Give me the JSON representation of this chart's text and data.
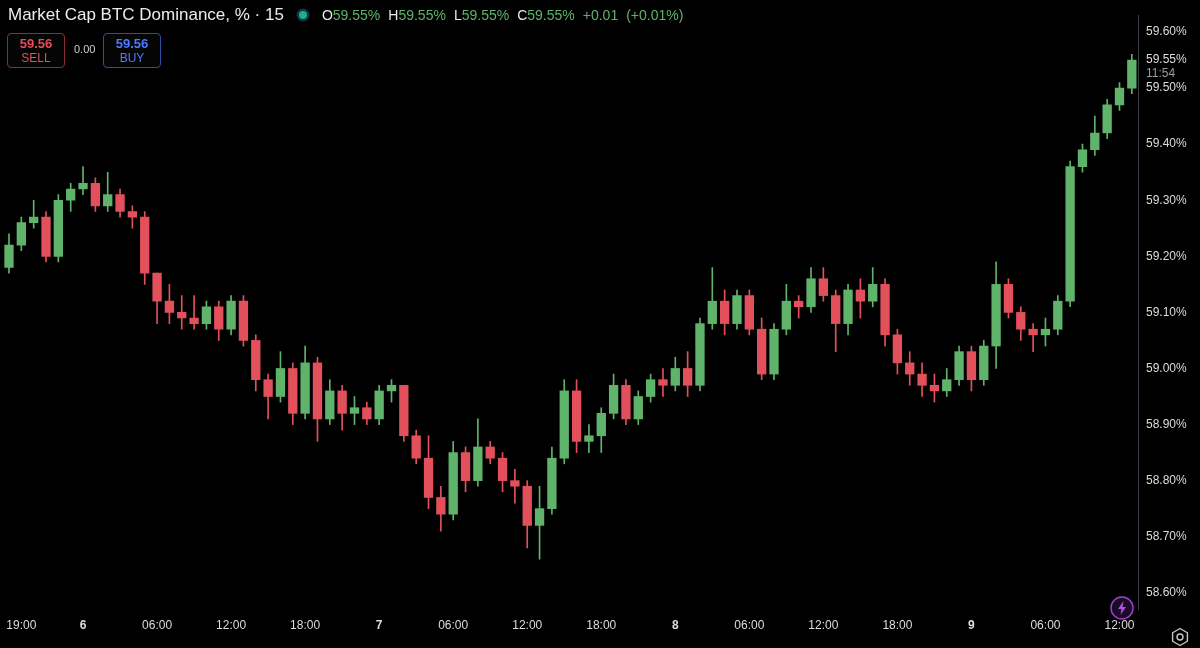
{
  "chart_data": {
    "type": "candlestick",
    "title": "Market Cap BTC Dominance, % · 15",
    "subtitle": "O59.55% H59.55% L59.55% C59.55% +0.01 (+0.01%)",
    "categories": [
      null,
      "19:00",
      null,
      null,
      null,
      null,
      "6",
      null,
      null,
      null,
      null,
      null,
      "06:00",
      null,
      null,
      null,
      null,
      null,
      "12:00",
      null,
      null,
      null,
      null,
      null,
      "18:00",
      null,
      null,
      null,
      null,
      null,
      "7",
      null,
      null,
      null,
      null,
      null,
      "06:00",
      null,
      null,
      null,
      null,
      null,
      "12:00",
      null,
      null,
      null,
      null,
      null,
      "18:00",
      null,
      null,
      null,
      null,
      null,
      "8",
      null,
      null,
      null,
      null,
      null,
      "06:00",
      null,
      null,
      null,
      null,
      null,
      "12:00",
      null,
      null,
      null,
      null,
      null,
      "18:00",
      null,
      null,
      null,
      null,
      null,
      "9",
      null,
      null,
      null,
      null,
      null,
      "06:00",
      null,
      null,
      null,
      null,
      null,
      "12:00",
      null
    ],
    "ohlc": [
      [
        59.18,
        59.24,
        59.17,
        59.22
      ],
      [
        59.22,
        59.27,
        59.21,
        59.26
      ],
      [
        59.26,
        59.3,
        59.25,
        59.27
      ],
      [
        59.27,
        59.28,
        59.19,
        59.2
      ],
      [
        59.2,
        59.31,
        59.19,
        59.3
      ],
      [
        59.3,
        59.33,
        59.28,
        59.32
      ],
      [
        59.32,
        59.36,
        59.31,
        59.33
      ],
      [
        59.33,
        59.34,
        59.28,
        59.29
      ],
      [
        59.29,
        59.35,
        59.28,
        59.31
      ],
      [
        59.31,
        59.32,
        59.27,
        59.28
      ],
      [
        59.28,
        59.29,
        59.25,
        59.27
      ],
      [
        59.27,
        59.28,
        59.15,
        59.17
      ],
      [
        59.17,
        59.17,
        59.08,
        59.12
      ],
      [
        59.12,
        59.15,
        59.08,
        59.1
      ],
      [
        59.1,
        59.13,
        59.07,
        59.09
      ],
      [
        59.09,
        59.13,
        59.07,
        59.08
      ],
      [
        59.08,
        59.12,
        59.07,
        59.11
      ],
      [
        59.11,
        59.12,
        59.05,
        59.07
      ],
      [
        59.07,
        59.13,
        59.06,
        59.12
      ],
      [
        59.12,
        59.13,
        59.04,
        59.05
      ],
      [
        59.05,
        59.06,
        58.96,
        58.98
      ],
      [
        58.98,
        58.99,
        58.91,
        58.95
      ],
      [
        58.95,
        59.03,
        58.94,
        59.0
      ],
      [
        59.0,
        59.01,
        58.9,
        58.92
      ],
      [
        58.92,
        59.04,
        58.91,
        59.01
      ],
      [
        59.01,
        59.02,
        58.87,
        58.91
      ],
      [
        58.91,
        58.98,
        58.9,
        58.96
      ],
      [
        58.96,
        58.97,
        58.89,
        58.92
      ],
      [
        58.92,
        58.95,
        58.9,
        58.93
      ],
      [
        58.93,
        58.94,
        58.9,
        58.91
      ],
      [
        58.91,
        58.97,
        58.9,
        58.96
      ],
      [
        58.96,
        58.98,
        58.94,
        58.97
      ],
      [
        58.97,
        58.97,
        58.87,
        58.88
      ],
      [
        58.88,
        58.89,
        58.83,
        58.84
      ],
      [
        58.84,
        58.88,
        58.75,
        58.77
      ],
      [
        58.77,
        58.79,
        58.71,
        58.74
      ],
      [
        58.74,
        58.87,
        58.73,
        58.85
      ],
      [
        58.85,
        58.86,
        58.78,
        58.8
      ],
      [
        58.8,
        58.91,
        58.79,
        58.86
      ],
      [
        58.86,
        58.87,
        58.83,
        58.84
      ],
      [
        58.84,
        58.85,
        58.78,
        58.8
      ],
      [
        58.8,
        58.82,
        58.76,
        58.79
      ],
      [
        58.79,
        58.8,
        58.68,
        58.72
      ],
      [
        58.72,
        58.79,
        58.66,
        58.75
      ],
      [
        58.75,
        58.86,
        58.74,
        58.84
      ],
      [
        58.84,
        58.98,
        58.83,
        58.96
      ],
      [
        58.96,
        58.98,
        58.85,
        58.87
      ],
      [
        58.87,
        58.9,
        58.85,
        58.88
      ],
      [
        58.88,
        58.93,
        58.85,
        58.92
      ],
      [
        58.92,
        58.99,
        58.91,
        58.97
      ],
      [
        58.97,
        58.98,
        58.9,
        58.91
      ],
      [
        58.91,
        58.96,
        58.9,
        58.95
      ],
      [
        58.95,
        58.99,
        58.94,
        58.98
      ],
      [
        58.98,
        59.0,
        58.95,
        58.97
      ],
      [
        58.97,
        59.02,
        58.96,
        59.0
      ],
      [
        59.0,
        59.03,
        58.95,
        58.97
      ],
      [
        58.97,
        59.09,
        58.96,
        59.08
      ],
      [
        59.08,
        59.18,
        59.07,
        59.12
      ],
      [
        59.12,
        59.14,
        59.06,
        59.08
      ],
      [
        59.08,
        59.14,
        59.07,
        59.13
      ],
      [
        59.13,
        59.14,
        59.06,
        59.07
      ],
      [
        59.07,
        59.09,
        58.98,
        58.99
      ],
      [
        58.99,
        59.08,
        58.98,
        59.07
      ],
      [
        59.07,
        59.15,
        59.06,
        59.12
      ],
      [
        59.12,
        59.13,
        59.09,
        59.11
      ],
      [
        59.11,
        59.18,
        59.1,
        59.16
      ],
      [
        59.16,
        59.18,
        59.12,
        59.13
      ],
      [
        59.13,
        59.14,
        59.03,
        59.08
      ],
      [
        59.08,
        59.15,
        59.06,
        59.14
      ],
      [
        59.14,
        59.16,
        59.09,
        59.12
      ],
      [
        59.12,
        59.18,
        59.11,
        59.15
      ],
      [
        59.15,
        59.16,
        59.04,
        59.06
      ],
      [
        59.06,
        59.07,
        58.99,
        59.01
      ],
      [
        59.01,
        59.03,
        58.97,
        58.99
      ],
      [
        58.99,
        59.01,
        58.95,
        58.97
      ],
      [
        58.97,
        58.99,
        58.94,
        58.96
      ],
      [
        58.96,
        59.0,
        58.95,
        58.98
      ],
      [
        58.98,
        59.04,
        58.97,
        59.03
      ],
      [
        59.03,
        59.04,
        58.96,
        58.98
      ],
      [
        58.98,
        59.05,
        58.97,
        59.04
      ],
      [
        59.04,
        59.19,
        59.0,
        59.15
      ],
      [
        59.15,
        59.16,
        59.09,
        59.1
      ],
      [
        59.1,
        59.11,
        59.05,
        59.07
      ],
      [
        59.07,
        59.08,
        59.03,
        59.06
      ],
      [
        59.06,
        59.09,
        59.04,
        59.07
      ],
      [
        59.07,
        59.13,
        59.06,
        59.12
      ],
      [
        59.12,
        59.37,
        59.11,
        59.36
      ],
      [
        59.36,
        59.4,
        59.35,
        59.39
      ],
      [
        59.39,
        59.45,
        59.38,
        59.42
      ],
      [
        59.42,
        59.48,
        59.41,
        59.47
      ],
      [
        59.47,
        59.51,
        59.46,
        59.5
      ],
      [
        59.5,
        59.56,
        59.49,
        59.55
      ]
    ],
    "colors": [
      "#5fb36a",
      "#5fb36a",
      "#5fb36a",
      "#e2505b",
      "#5fb36a",
      "#5fb36a",
      "#5fb36a",
      "#e2505b",
      "#5fb36a",
      "#e2505b",
      "#e2505b",
      "#e2505b",
      "#e2505b",
      "#e2505b",
      "#e2505b",
      "#e2505b",
      "#5fb36a",
      "#e2505b",
      "#5fb36a",
      "#e2505b",
      "#e2505b",
      "#e2505b",
      "#5fb36a",
      "#e2505b",
      "#5fb36a",
      "#e2505b",
      "#5fb36a",
      "#e2505b",
      "#5fb36a",
      "#e2505b",
      "#5fb36a",
      "#5fb36a",
      "#e2505b",
      "#e2505b",
      "#e2505b",
      "#e2505b",
      "#5fb36a",
      "#e2505b",
      "#5fb36a",
      "#e2505b",
      "#e2505b",
      "#e2505b",
      "#e2505b",
      "#5fb36a",
      "#5fb36a",
      "#5fb36a",
      "#e2505b",
      "#5fb36a",
      "#5fb36a",
      "#5fb36a",
      "#e2505b",
      "#5fb36a",
      "#5fb36a",
      "#e2505b",
      "#5fb36a",
      "#e2505b",
      "#5fb36a",
      "#5fb36a",
      "#e2505b",
      "#5fb36a",
      "#e2505b",
      "#e2505b",
      "#5fb36a",
      "#5fb36a",
      "#e2505b",
      "#5fb36a",
      "#e2505b",
      "#e2505b",
      "#5fb36a",
      "#e2505b",
      "#5fb36a",
      "#e2505b",
      "#e2505b",
      "#e2505b",
      "#e2505b",
      "#e2505b",
      "#5fb36a",
      "#5fb36a",
      "#e2505b",
      "#5fb36a",
      "#5fb36a",
      "#e2505b",
      "#e2505b",
      "#e2505b",
      "#5fb36a",
      "#5fb36a",
      "#5fb36a",
      "#5fb36a",
      "#5fb36a",
      "#5fb36a",
      "#5fb36a",
      "#5fb36a"
    ],
    "ylim": [
      58.57,
      59.63
    ],
    "yticks": [
      {
        "value": 58.6,
        "label": "58.60%"
      },
      {
        "value": 58.7,
        "label": "58.70%"
      },
      {
        "value": 58.8,
        "label": "58.80%"
      },
      {
        "value": 58.9,
        "label": "58.90%"
      },
      {
        "value": 59.0,
        "label": "59.00%"
      },
      {
        "value": 59.1,
        "label": "59.10%"
      },
      {
        "value": 59.2,
        "label": "59.20%"
      },
      {
        "value": 59.3,
        "label": "59.30%"
      },
      {
        "value": 59.4,
        "label": "59.40%"
      },
      {
        "value": 59.5,
        "label": "59.50%"
      },
      {
        "value": 59.55,
        "label": "59.55%"
      },
      {
        "value": 59.6,
        "label": "59.60%"
      }
    ],
    "annotations": [
      "11:54",
      "59.56",
      "SELL",
      "0.00",
      "59.56",
      "BUY"
    ]
  }
}
